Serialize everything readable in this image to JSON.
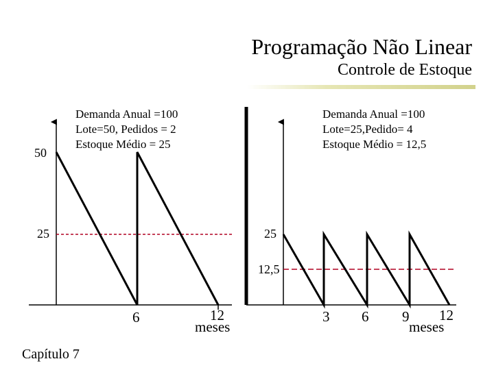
{
  "header": {
    "title": "Programação Não Linear",
    "subtitle": "Controle de Estoque"
  },
  "left_panel": {
    "info_lines": [
      "Demanda Anual =100",
      "Lote=50, Pedidos = 2",
      "Estoque Médio = 25"
    ],
    "y_top_label": "50",
    "y_avg_label": "25",
    "x_labels": [
      "6",
      "12"
    ],
    "x_unit": "meses"
  },
  "right_panel": {
    "info_lines": [
      "Demanda Anual =100",
      "Lote=25,Pedido= 4",
      "Estoque Médio = 12,5"
    ],
    "y_top_label": "25",
    "y_avg_label": "12,5",
    "x_labels": [
      "3",
      "6",
      "9",
      "12"
    ],
    "x_unit": "meses"
  },
  "colors": {
    "axis": "#000000",
    "stock_line": "#000000",
    "average_line": "#b00020",
    "divider": "#d2d28c"
  },
  "footer": {
    "chapter": "Capítulo 7"
  }
}
